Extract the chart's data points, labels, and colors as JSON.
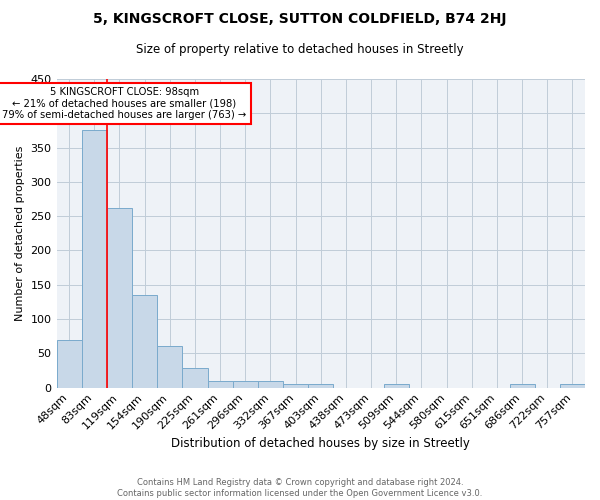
{
  "title1": "5, KINGSCROFT CLOSE, SUTTON COLDFIELD, B74 2HJ",
  "title2": "Size of property relative to detached houses in Streetly",
  "xlabel": "Distribution of detached houses by size in Streetly",
  "ylabel": "Number of detached properties",
  "footer1": "Contains HM Land Registry data © Crown copyright and database right 2024.",
  "footer2": "Contains public sector information licensed under the Open Government Licence v3.0.",
  "bin_labels": [
    "48sqm",
    "83sqm",
    "119sqm",
    "154sqm",
    "190sqm",
    "225sqm",
    "261sqm",
    "296sqm",
    "332sqm",
    "367sqm",
    "403sqm",
    "438sqm",
    "473sqm",
    "509sqm",
    "544sqm",
    "580sqm",
    "615sqm",
    "651sqm",
    "686sqm",
    "722sqm",
    "757sqm"
  ],
  "bar_heights": [
    70,
    375,
    262,
    135,
    60,
    29,
    10,
    10,
    10,
    5,
    5,
    0,
    0,
    5,
    0,
    0,
    0,
    0,
    5,
    0,
    5
  ],
  "bar_color": "#c8d8e8",
  "bar_edge_color": "#7aaacc",
  "grid_color": "#c0ccd8",
  "background_color": "#eef2f7",
  "annotation_line1": "5 KINGSCROFT CLOSE: 98sqm",
  "annotation_line2": "← 21% of detached houses are smaller (198)",
  "annotation_line3": "79% of semi-detached houses are larger (763) →",
  "annotation_box_color": "white",
  "annotation_box_edge_color": "red",
  "red_line_x": 1.5,
  "ylim": [
    0,
    450
  ],
  "yticks": [
    0,
    50,
    100,
    150,
    200,
    250,
    300,
    350,
    400,
    450
  ]
}
